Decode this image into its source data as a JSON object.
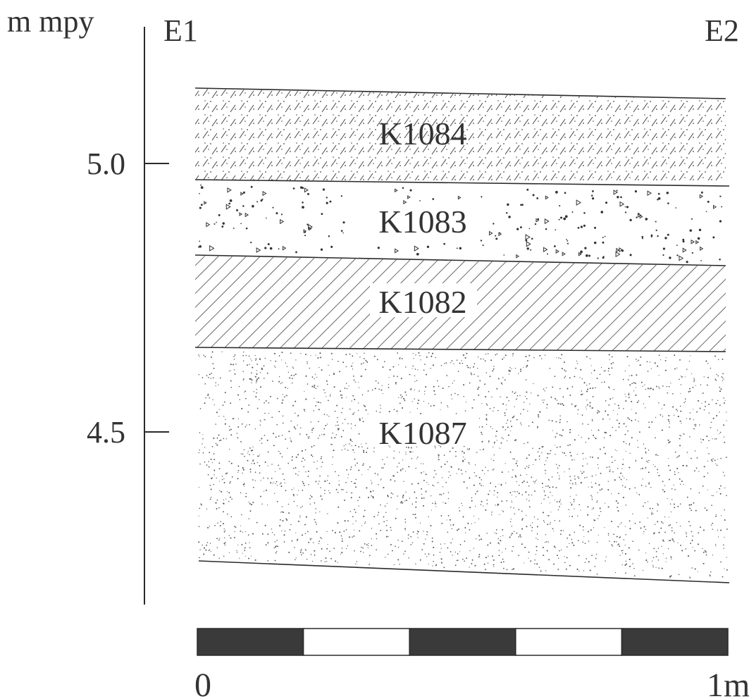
{
  "vertical_axis": {
    "unit": "m mpy",
    "ticks": [
      "5.0",
      "4.5"
    ]
  },
  "profile_ends": {
    "left": "E1",
    "right": "E2"
  },
  "layers": [
    {
      "id": "K1084",
      "pattern": "dashes-and-dots"
    },
    {
      "id": "K1083",
      "pattern": "gravel-triangles"
    },
    {
      "id": "K1082",
      "pattern": "diagonal-hatching"
    },
    {
      "id": "K1087",
      "pattern": "fine-dots"
    }
  ],
  "scale_bar": {
    "start_label": "0",
    "end_label": "1m",
    "segments": 5,
    "colors": {
      "dark": "#3a3a3a",
      "light": "#ffffff"
    }
  },
  "colors": {
    "ink": "#2a2a2a",
    "label": "#333333",
    "background": "#ffffff"
  }
}
